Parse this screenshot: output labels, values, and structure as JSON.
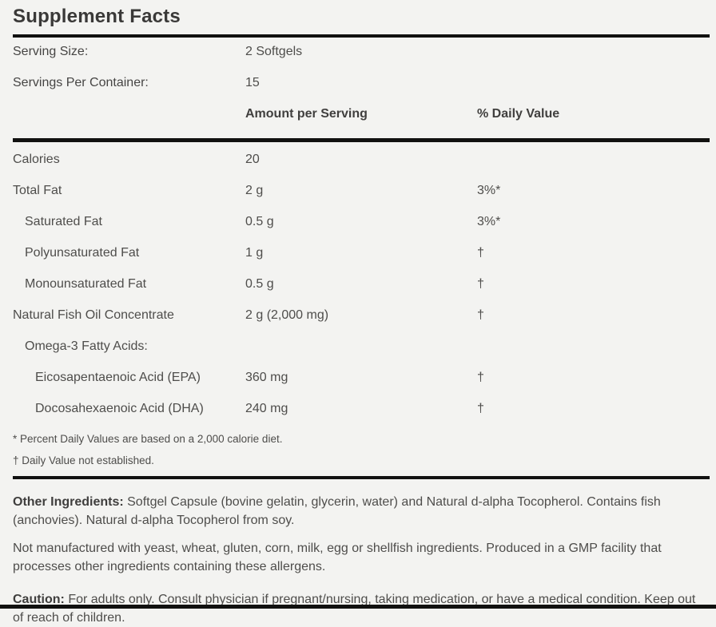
{
  "label": {
    "title": "Supplement Facts",
    "serving_info": [
      {
        "label": "Serving Size:",
        "value": "2 Softgels"
      },
      {
        "label": "Servings Per Container:",
        "value": "15"
      }
    ],
    "columns": {
      "amount": "Amount per Serving",
      "daily_value": "% Daily Value"
    },
    "rows": [
      {
        "name": "Calories",
        "amount": "20",
        "dv": ""
      },
      {
        "name": "Total Fat",
        "amount": "2 g",
        "dv": "3%*"
      },
      {
        "name": "Saturated Fat",
        "amount": "0.5 g",
        "dv": "3%*"
      },
      {
        "name": "Polyunsaturated Fat",
        "amount": "1 g",
        "dv": "†"
      },
      {
        "name": "Monounsaturated Fat",
        "amount": "0.5 g",
        "dv": "†"
      },
      {
        "name": "Natural Fish Oil Concentrate",
        "amount": "2 g (2,000 mg)",
        "dv": "†"
      },
      {
        "name": "Omega-3 Fatty Acids:",
        "amount": "",
        "dv": ""
      },
      {
        "name": "Eicosapentaenoic Acid (EPA)",
        "amount": "360 mg",
        "dv": "†"
      },
      {
        "name": "Docosahexaenoic Acid (DHA)",
        "amount": "240 mg",
        "dv": "†"
      }
    ],
    "footnotes": [
      "* Percent Daily Values are based on a 2,000 calorie diet.",
      "† Daily Value not established."
    ],
    "other_ingredients": {
      "label": "Other Ingredients:",
      "text": " Softgel Capsule (bovine gelatin, glycerin, water) and Natural d-alpha Tocopherol. Contains fish (anchovies). Natural d-alpha Tocopherol from soy."
    },
    "allergen_note": "Not manufactured with yeast, wheat, gluten, corn, milk, egg or shellfish ingredients. Produced in a GMP facility that processes other ingredients containing these allergens.",
    "caution": {
      "label": "Caution:",
      "text": " For adults only. Consult physician if pregnant/nursing, taking medication, or have a medical condition. Keep out of reach of children."
    },
    "colors": {
      "background": "#f3f3f1",
      "rule": "#111110",
      "body_text": "#4e4d4b",
      "heading_text": "#3a3938"
    }
  }
}
